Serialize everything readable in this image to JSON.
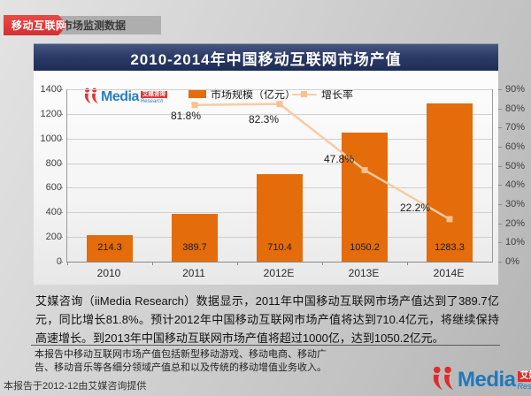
{
  "header": {
    "ribbon_label": "移动互联网",
    "strip_label": "市场监测数据"
  },
  "title": "2010-2014年中国移动互联网市场产值",
  "logo": {
    "name": "Media",
    "badge": "艾媒咨询",
    "sub": "Research"
  },
  "chart_data": {
    "type": "bar",
    "subtype": "bar+line combo",
    "categories": [
      "2010",
      "2011",
      "2012E",
      "2013E",
      "2014E"
    ],
    "series": [
      {
        "name": "市场规模（亿元）",
        "type": "bar",
        "values": [
          214.3,
          389.7,
          710.4,
          1050.2,
          1283.3
        ],
        "color": "#E46C0A"
      },
      {
        "name": "增长率",
        "type": "line",
        "values": [
          null,
          81.8,
          82.3,
          47.8,
          22.2
        ],
        "unit": "%",
        "color": "#FAC090"
      }
    ],
    "title": "2010-2014年中国移动互联网市场产值",
    "left_axis": {
      "min": 0,
      "max": 1400,
      "step": 200
    },
    "right_axis": {
      "min": 0,
      "max": 90,
      "step": 10,
      "suffix": "%"
    },
    "legend_position": "top",
    "grid": true
  },
  "body_text": "艾媒咨询（iiMedia Research）数据显示，2011年中国移动互联网市场产值达到了389.7亿元，同比增长81.8%。预计2012年中国移动互联网市场产值将达到710.4亿元，将继续保持高速增长。到2013年中国移动互联网市场产值将超过1000亿，达到1050.2亿元。",
  "note_text": "本报告中移动互联网市场产值包括新型移动游戏、移动电商、移动广告、移动音乐等各细分领域产值总和以及传统的移动增值业务收入。",
  "footer": {
    "source_text": "本报告于2012-12由艾媒咨询提供"
  },
  "colors": {
    "bar": "#E46C0A",
    "line": "#FBCAA2",
    "line_marker": "#FAC090",
    "title_bar": "#2C3C68",
    "ribbon_red": "#D93534",
    "logo_blue": "#2078BE",
    "logo_red": "#E02B2B"
  }
}
